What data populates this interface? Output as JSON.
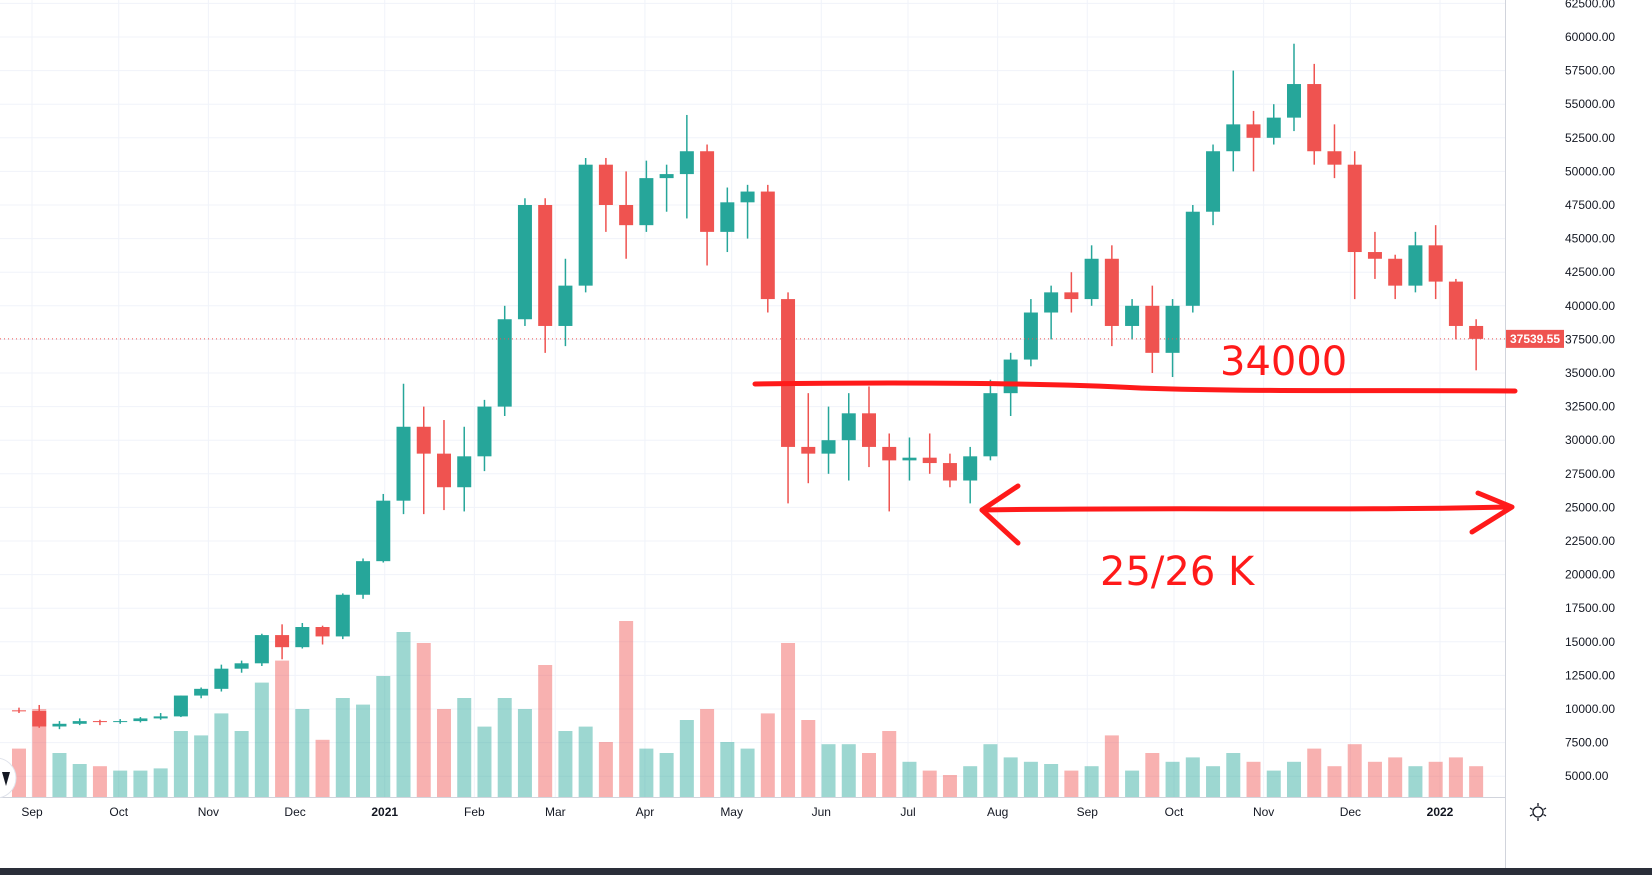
{
  "chart_data": {
    "type": "candlestick",
    "price_axis": {
      "ticks": [
        "62500.00",
        "60000.00",
        "57500.00",
        "55000.00",
        "52500.00",
        "50000.00",
        "47500.00",
        "45000.00",
        "42500.00",
        "40000.00",
        "37500.00",
        "35000.00",
        "32500.00",
        "30000.00",
        "27500.00",
        "25000.00",
        "22500.00",
        "20000.00",
        "17500.00",
        "15000.00",
        "12500.00",
        "10000.00",
        "7500.00",
        "5000.00"
      ],
      "range": [
        3500,
        62700
      ],
      "last_price": "37539.55"
    },
    "time_axis": {
      "ticks": [
        {
          "label": "Sep",
          "date": "2020-09-01"
        },
        {
          "label": "Oct",
          "date": "2020-10-01"
        },
        {
          "label": "Nov",
          "date": "2020-11-01"
        },
        {
          "label": "Dec",
          "date": "2020-12-01"
        },
        {
          "label": "2021",
          "date": "2021-01-01",
          "year": true
        },
        {
          "label": "Feb",
          "date": "2021-02-01"
        },
        {
          "label": "Mar",
          "date": "2021-03-01"
        },
        {
          "label": "Apr",
          "date": "2021-04-01"
        },
        {
          "label": "May",
          "date": "2021-05-01"
        },
        {
          "label": "Jun",
          "date": "2021-06-01"
        },
        {
          "label": "Jul",
          "date": "2021-07-01"
        },
        {
          "label": "Aug",
          "date": "2021-08-01"
        },
        {
          "label": "Sep",
          "date": "2021-09-01"
        },
        {
          "label": "Oct",
          "date": "2021-10-01"
        },
        {
          "label": "Nov",
          "date": "2021-11-01"
        },
        {
          "label": "Dec",
          "date": "2021-12-01"
        },
        {
          "label": "2022",
          "date": "2022-01-01",
          "year": true
        }
      ]
    },
    "colors": {
      "up": "#26a69a",
      "down": "#ef5350",
      "annotation": "#ff1a1a",
      "grid": "#f0f3fa"
    },
    "grid": true,
    "candles_columns": [
      "week",
      "open",
      "high",
      "low",
      "close",
      "volume_relative"
    ],
    "candles": [
      [
        "2020-08-24",
        9900,
        10100,
        9700,
        9850,
        22
      ],
      [
        "2020-08-31",
        9850,
        10300,
        8600,
        8700,
        40
      ],
      [
        "2020-09-07",
        8700,
        9100,
        8500,
        8900,
        20
      ],
      [
        "2020-09-14",
        8900,
        9300,
        8800,
        9100,
        15
      ],
      [
        "2020-09-21",
        9100,
        9200,
        8800,
        9050,
        14
      ],
      [
        "2020-09-28",
        9050,
        9250,
        8900,
        9100,
        12
      ],
      [
        "2020-10-05",
        9100,
        9400,
        9000,
        9300,
        12
      ],
      [
        "2020-10-12",
        9300,
        9700,
        9200,
        9450,
        13
      ],
      [
        "2020-10-19",
        9450,
        11000,
        9400,
        11000,
        30
      ],
      [
        "2020-10-26",
        11000,
        11600,
        10800,
        11500,
        28
      ],
      [
        "2020-11-02",
        11500,
        13300,
        11300,
        13000,
        38
      ],
      [
        "2020-11-09",
        13000,
        13600,
        12700,
        13400,
        30
      ],
      [
        "2020-11-16",
        13400,
        15600,
        13200,
        15500,
        52
      ],
      [
        "2020-11-23",
        15500,
        16300,
        13700,
        14600,
        62
      ],
      [
        "2020-11-30",
        14600,
        16400,
        14500,
        16100,
        40
      ],
      [
        "2020-12-07",
        16100,
        16200,
        14800,
        15400,
        26
      ],
      [
        "2020-12-14",
        15400,
        18600,
        15200,
        18500,
        45
      ],
      [
        "2020-12-21",
        18500,
        21200,
        18200,
        21000,
        42
      ],
      [
        "2020-12-28",
        21000,
        26000,
        20900,
        25500,
        55
      ],
      [
        "2021-01-04",
        25500,
        34200,
        24500,
        31000,
        75
      ],
      [
        "2021-01-11",
        31000,
        32500,
        24500,
        29000,
        70
      ],
      [
        "2021-01-18",
        29000,
        31500,
        24800,
        26500,
        40
      ],
      [
        "2021-01-25",
        26500,
        31000,
        24700,
        28800,
        45
      ],
      [
        "2021-02-01",
        28800,
        33000,
        27700,
        32500,
        32
      ],
      [
        "2021-02-08",
        32500,
        40000,
        31800,
        39000,
        45
      ],
      [
        "2021-02-15",
        39000,
        48000,
        38500,
        47500,
        40
      ],
      [
        "2021-02-22",
        47500,
        48000,
        36500,
        38500,
        60
      ],
      [
        "2021-03-01",
        38500,
        43500,
        37000,
        41500,
        30
      ],
      [
        "2021-03-08",
        41500,
        51000,
        41000,
        50500,
        32
      ],
      [
        "2021-03-15",
        50500,
        51000,
        45500,
        47500,
        25
      ],
      [
        "2021-03-22",
        47500,
        50000,
        43500,
        46000,
        80
      ],
      [
        "2021-03-29",
        46000,
        50800,
        45500,
        49500,
        22
      ],
      [
        "2021-04-05",
        49500,
        50500,
        47000,
        49800,
        20
      ],
      [
        "2021-04-12",
        49800,
        54200,
        46500,
        51500,
        35
      ],
      [
        "2021-04-19",
        51500,
        52000,
        43000,
        45500,
        40
      ],
      [
        "2021-04-26",
        45500,
        48800,
        44000,
        47700,
        25
      ],
      [
        "2021-05-03",
        47700,
        49000,
        45000,
        48500,
        22
      ],
      [
        "2021-05-10",
        48500,
        49000,
        39500,
        40500,
        38
      ],
      [
        "2021-05-17",
        40500,
        41000,
        25300,
        29500,
        70
      ],
      [
        "2021-05-24",
        29500,
        33500,
        26800,
        29000,
        35
      ],
      [
        "2021-05-31",
        29000,
        32500,
        27500,
        30000,
        24
      ],
      [
        "2021-06-07",
        30000,
        33500,
        27000,
        32000,
        24
      ],
      [
        "2021-06-14",
        32000,
        34000,
        28000,
        29500,
        20
      ],
      [
        "2021-06-21",
        29500,
        30500,
        24700,
        28500,
        30
      ],
      [
        "2021-06-28",
        28500,
        30200,
        27000,
        28700,
        16
      ],
      [
        "2021-07-05",
        28700,
        30500,
        27500,
        28300,
        12
      ],
      [
        "2021-07-12",
        28300,
        29000,
        26500,
        27000,
        10
      ],
      [
        "2021-07-19",
        27000,
        29500,
        25300,
        28800,
        14
      ],
      [
        "2021-07-26",
        28800,
        34500,
        28500,
        33500,
        24
      ],
      [
        "2021-08-02",
        33500,
        36500,
        31800,
        36000,
        18
      ],
      [
        "2021-08-09",
        36000,
        40500,
        35500,
        39500,
        16
      ],
      [
        "2021-08-16",
        39500,
        41500,
        37500,
        41000,
        15
      ],
      [
        "2021-08-23",
        41000,
        42500,
        39500,
        40500,
        12
      ],
      [
        "2021-08-30",
        40500,
        44500,
        40000,
        43500,
        14
      ],
      [
        "2021-09-06",
        43500,
        44500,
        37000,
        38500,
        28
      ],
      [
        "2021-09-13",
        38500,
        40500,
        37500,
        40000,
        12
      ],
      [
        "2021-09-20",
        40000,
        41500,
        35000,
        36500,
        20
      ],
      [
        "2021-09-27",
        36500,
        40500,
        34700,
        40000,
        16
      ],
      [
        "2021-10-04",
        40000,
        47500,
        39500,
        47000,
        18
      ],
      [
        "2021-10-11",
        47000,
        52000,
        46000,
        51500,
        14
      ],
      [
        "2021-10-18",
        51500,
        57500,
        50000,
        53500,
        20
      ],
      [
        "2021-10-25",
        53500,
        54500,
        50000,
        52500,
        16
      ],
      [
        "2021-11-01",
        52500,
        55000,
        52000,
        54000,
        12
      ],
      [
        "2021-11-08",
        54000,
        59500,
        53000,
        56500,
        16
      ],
      [
        "2021-11-15",
        56500,
        58000,
        50500,
        51500,
        22
      ],
      [
        "2021-11-22",
        51500,
        53500,
        49500,
        50500,
        14
      ],
      [
        "2021-11-29",
        50500,
        51500,
        40500,
        44000,
        24
      ],
      [
        "2021-12-06",
        44000,
        45500,
        42000,
        43500,
        16
      ],
      [
        "2021-12-13",
        43500,
        43800,
        40500,
        41500,
        18
      ],
      [
        "2021-12-20",
        41500,
        45500,
        41000,
        44500,
        14
      ],
      [
        "2021-12-27",
        44500,
        46000,
        40500,
        41800,
        16
      ],
      [
        "2022-01-03",
        41800,
        42000,
        37500,
        38500,
        18
      ],
      [
        "2022-01-10",
        38500,
        39000,
        35200,
        37539.55,
        14
      ]
    ],
    "annotations": [
      {
        "kind": "horizontal-line",
        "price": 34000,
        "text": "34000"
      },
      {
        "kind": "double-arrow",
        "price": 25000,
        "text": "25/26 K"
      }
    ]
  }
}
